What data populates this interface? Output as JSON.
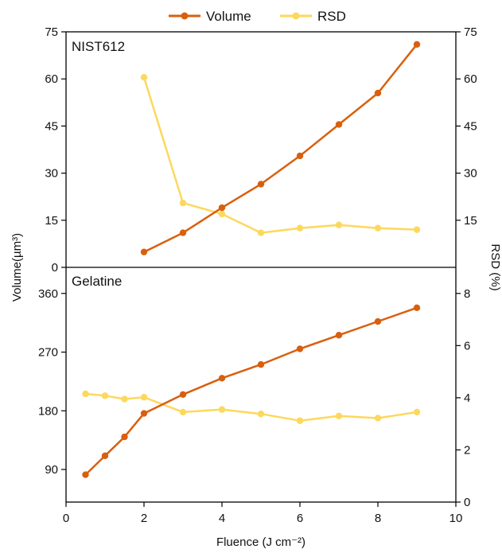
{
  "colors": {
    "volume": "#d95f0e",
    "rsd": "#fdd85d",
    "axis": "#000000"
  },
  "legend": {
    "items": [
      {
        "key": "volume",
        "label": "Volume"
      },
      {
        "key": "rsd",
        "label": "RSD"
      }
    ]
  },
  "axes": {
    "xlabel": "Fluence (J cm⁻²)",
    "ylabel_left": "Volume(µm³)",
    "ylabel_right": "RSD (%)",
    "xlim": [
      0,
      10
    ],
    "xticks": [
      0,
      2,
      4,
      6,
      8,
      10
    ]
  },
  "chart_data": [
    {
      "type": "line",
      "panel_label": "NIST612",
      "x": [
        2,
        3,
        4,
        5,
        6,
        7,
        8,
        9
      ],
      "left_ylim": [
        0,
        75
      ],
      "left_yticks": [
        0,
        15,
        30,
        45,
        60,
        75
      ],
      "right_ylim": [
        0,
        75
      ],
      "right_yticks": [
        15,
        30,
        45,
        60,
        75
      ],
      "series": [
        {
          "name": "Volume",
          "key": "volume",
          "axis": "left",
          "values": [
            4.9,
            11,
            19,
            26.5,
            35.5,
            45.5,
            55.5,
            71
          ]
        },
        {
          "name": "RSD",
          "key": "rsd",
          "axis": "right",
          "values": [
            60.5,
            20.5,
            17,
            11,
            12.5,
            13.5,
            12.5,
            12
          ]
        }
      ]
    },
    {
      "type": "line",
      "panel_label": "Gelatine",
      "x": [
        0.5,
        1,
        1.5,
        2,
        3,
        4,
        5,
        6,
        7,
        8,
        9
      ],
      "left_ylim": [
        40,
        400
      ],
      "left_yticks": [
        90,
        180,
        270,
        360
      ],
      "right_ylim": [
        0,
        9
      ],
      "right_yticks": [
        0,
        2,
        4,
        6,
        8
      ],
      "series": [
        {
          "name": "Volume",
          "key": "volume",
          "axis": "left",
          "values": [
            82,
            111,
            140,
            176,
            205,
            230,
            251,
            275,
            296,
            317,
            338
          ]
        },
        {
          "name": "RSD",
          "key": "rsd",
          "axis": "right",
          "values": [
            4.15,
            4.08,
            3.95,
            4.02,
            3.45,
            3.55,
            3.38,
            3.12,
            3.3,
            3.22,
            3.45
          ]
        }
      ]
    }
  ]
}
